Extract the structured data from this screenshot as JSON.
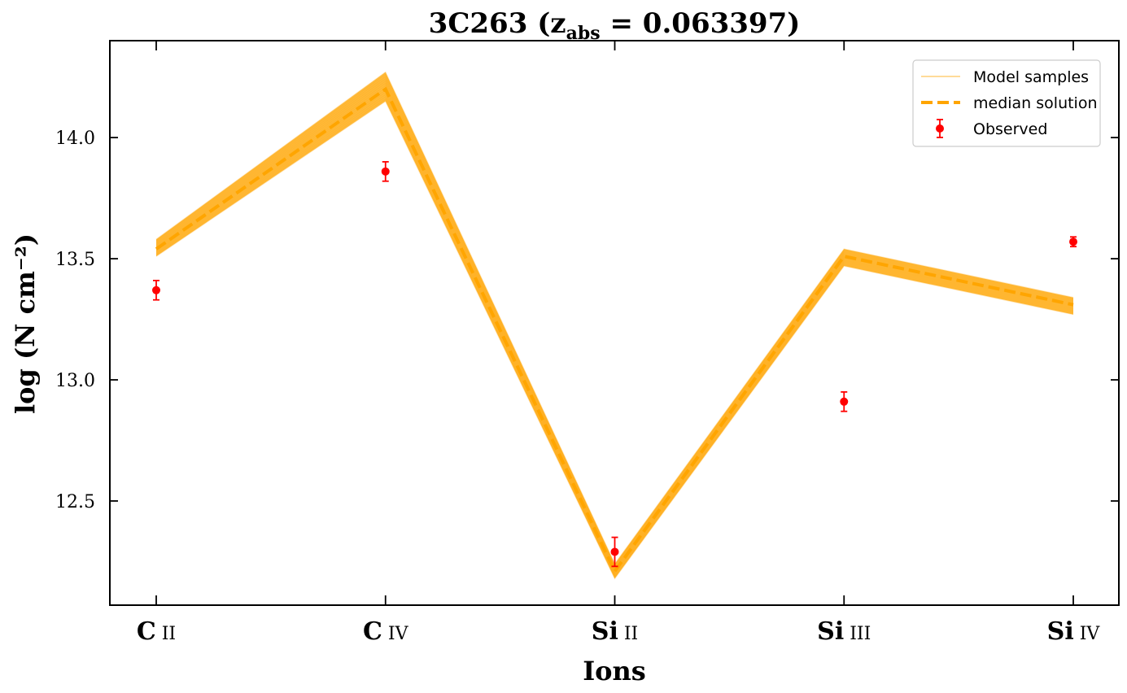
{
  "chart_data": {
    "type": "line",
    "title": {
      "main": "3C263 (z",
      "sub": "abs",
      "rest": " = 0.063397)"
    },
    "xlabel": "Ions",
    "ylabel": "log (N cm⁻²)",
    "categories": [
      {
        "main": "C",
        "sub": " II"
      },
      {
        "main": "C",
        "sub": " IV"
      },
      {
        "main": "Si",
        "sub": " II"
      },
      {
        "main": "Si",
        "sub": " III"
      },
      {
        "main": "Si",
        "sub": " IV"
      }
    ],
    "ylim": [
      12.07,
      14.4
    ],
    "yticks": [
      "12.5",
      "13.0",
      "13.5",
      "14.0"
    ],
    "grid": false,
    "legend_position": "top-right",
    "colors": {
      "model": "#ffa500",
      "observed": "#ff0000"
    },
    "series": [
      {
        "name": "Model samples",
        "kind": "band",
        "values_low": [
          13.51,
          14.15,
          12.18,
          13.47,
          13.27
        ],
        "values_high": [
          13.58,
          14.27,
          12.24,
          13.54,
          13.34
        ]
      },
      {
        "name": "median solution",
        "kind": "dashed-line",
        "values": [
          13.54,
          14.2,
          12.21,
          13.51,
          13.31
        ]
      },
      {
        "name": "Observed",
        "kind": "errorbar",
        "values": [
          13.37,
          13.86,
          12.29,
          12.91,
          13.57
        ],
        "errors": [
          0.04,
          0.04,
          0.06,
          0.04,
          0.02
        ]
      }
    ]
  }
}
